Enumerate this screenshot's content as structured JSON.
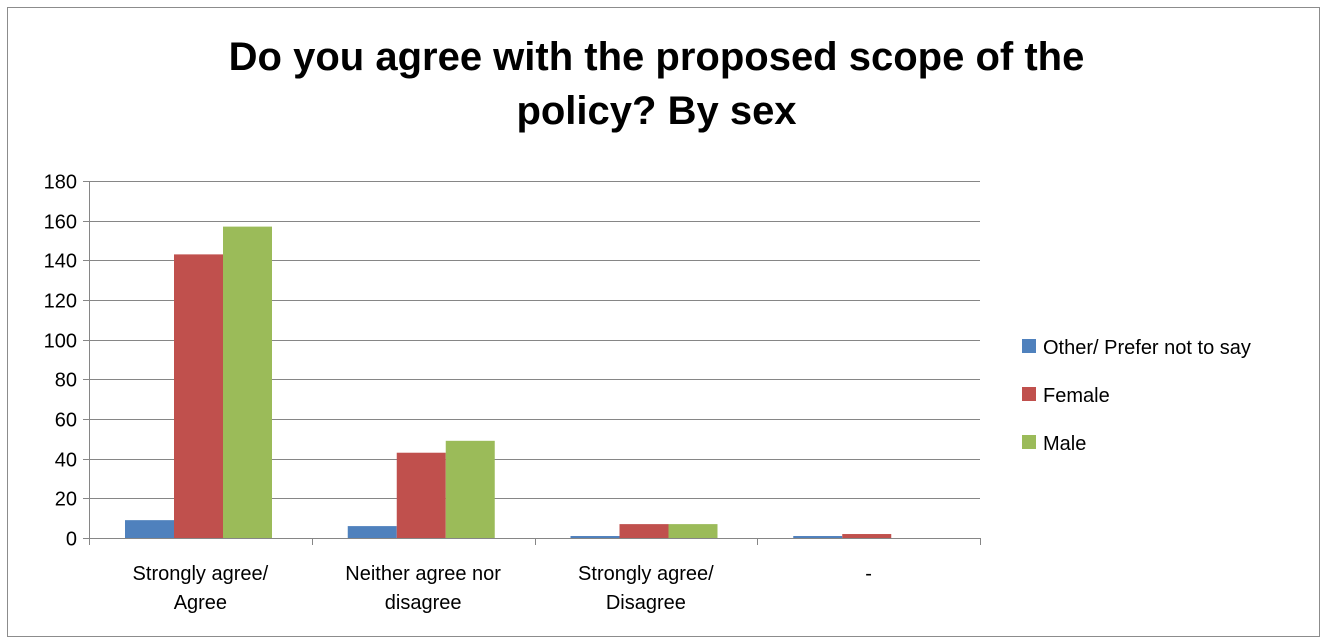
{
  "chart_data": {
    "type": "bar",
    "title_lines": [
      "Do you agree with the proposed scope of the",
      "policy? By sex"
    ],
    "categories": [
      [
        "Strongly agree/",
        "Agree"
      ],
      [
        "Neither agree nor",
        "disagree"
      ],
      [
        "Strongly agree/",
        "Disagree"
      ],
      [
        "-"
      ]
    ],
    "series": [
      {
        "name": "Other/ Prefer not to say",
        "color": "#4f81bd",
        "values": [
          9,
          6,
          1,
          1
        ]
      },
      {
        "name": "Female",
        "color": "#c0504d",
        "values": [
          143,
          43,
          7,
          2
        ]
      },
      {
        "name": "Male",
        "color": "#9bbb59",
        "values": [
          157,
          49,
          7,
          0
        ]
      }
    ],
    "ylim": [
      0,
      180
    ],
    "yticks": [
      0,
      20,
      40,
      60,
      80,
      100,
      120,
      140,
      160,
      180
    ],
    "grid": true,
    "legend_position": "right"
  }
}
